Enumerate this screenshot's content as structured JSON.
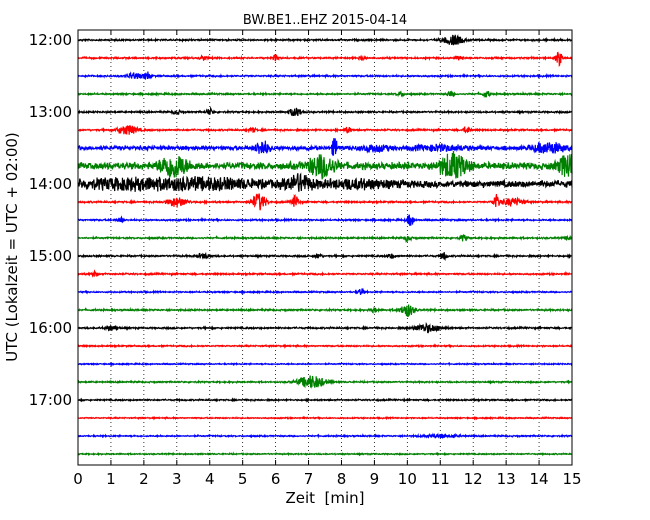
{
  "chart_data": {
    "type": "line",
    "title": "BW.BE1..EHZ 2015-04-14",
    "xlabel": "Zeit  [min]",
    "ylabel": "UTC (Lokalzeit = UTC + 02:00)",
    "xlim": [
      0,
      15
    ],
    "x_ticks": [
      0,
      1,
      2,
      3,
      4,
      5,
      6,
      7,
      8,
      9,
      10,
      11,
      12,
      13,
      14,
      15
    ],
    "y_tick_labels": [
      "12:00",
      "13:00",
      "14:00",
      "15:00",
      "16:00",
      "17:00"
    ],
    "grid": "vertical dotted",
    "series_colors": [
      "#000000",
      "#ff0000",
      "#0000ff",
      "#008000"
    ],
    "traces": [
      {
        "start": "12:00",
        "color": "#000000",
        "amplitude": 0.08,
        "events": [
          [
            11.4,
            0.6,
            0.3
          ]
        ]
      },
      {
        "start": "12:15",
        "color": "#ff0000",
        "amplitude": 0.08,
        "events": [
          [
            3.8,
            0.3,
            0.1
          ],
          [
            6.0,
            0.35,
            0.1
          ],
          [
            8.6,
            0.3,
            0.1
          ],
          [
            11.6,
            0.3,
            0.1
          ],
          [
            14.6,
            0.9,
            0.1
          ]
        ]
      },
      {
        "start": "12:30",
        "color": "#0000ff",
        "amplitude": 0.08,
        "events": [
          [
            1.7,
            0.4,
            0.2
          ],
          [
            2.1,
            0.5,
            0.1
          ]
        ]
      },
      {
        "start": "12:45",
        "color": "#008000",
        "amplitude": 0.08,
        "events": [
          [
            9.8,
            0.3,
            0.1
          ],
          [
            11.3,
            0.3,
            0.1
          ],
          [
            12.4,
            0.4,
            0.1
          ]
        ]
      },
      {
        "start": "13:00",
        "color": "#000000",
        "amplitude": 0.08,
        "events": [
          [
            3.0,
            0.3,
            0.1
          ],
          [
            4.0,
            0.4,
            0.1
          ],
          [
            6.6,
            0.5,
            0.2
          ]
        ]
      },
      {
        "start": "13:15",
        "color": "#ff0000",
        "amplitude": 0.08,
        "events": [
          [
            1.5,
            0.6,
            0.3
          ],
          [
            5.3,
            0.3,
            0.1
          ],
          [
            8.2,
            0.4,
            0.1
          ],
          [
            11.8,
            0.4,
            0.1
          ]
        ]
      },
      {
        "start": "13:30",
        "color": "#0000ff",
        "amplitude": 0.2,
        "events": [
          [
            5.6,
            0.9,
            0.2
          ],
          [
            7.8,
            1.1,
            0.1
          ],
          [
            9.0,
            0.4,
            0.4
          ],
          [
            11.0,
            0.3,
            0.8
          ],
          [
            14.3,
            0.6,
            0.5
          ]
        ]
      },
      {
        "start": "13:45",
        "color": "#008000",
        "amplitude": 0.35,
        "events": [
          [
            2.9,
            1.4,
            0.4
          ],
          [
            7.4,
            1.3,
            0.4
          ],
          [
            11.4,
            1.5,
            0.4
          ],
          [
            14.9,
            1.4,
            0.3
          ]
        ]
      },
      {
        "start": "14:00",
        "color": "#000000",
        "amplitude": 0.35,
        "events": [
          [
            1.5,
            0.5,
            1.5
          ],
          [
            4.0,
            0.5,
            1.5
          ],
          [
            6.7,
            0.9,
            0.4
          ],
          [
            8.5,
            0.4,
            1.0
          ]
        ]
      },
      {
        "start": "14:15",
        "color": "#ff0000",
        "amplitude": 0.08,
        "events": [
          [
            3.0,
            0.6,
            0.3
          ],
          [
            5.5,
            1.1,
            0.2
          ],
          [
            6.6,
            0.8,
            0.1
          ],
          [
            12.7,
            0.9,
            0.1
          ],
          [
            13.2,
            0.5,
            0.3
          ]
        ]
      },
      {
        "start": "14:30",
        "color": "#0000ff",
        "amplitude": 0.08,
        "events": [
          [
            10.1,
            0.8,
            0.1
          ],
          [
            1.3,
            0.3,
            0.1
          ]
        ]
      },
      {
        "start": "14:45",
        "color": "#008000",
        "amplitude": 0.08,
        "events": [
          [
            10.0,
            0.4,
            0.1
          ],
          [
            11.7,
            0.4,
            0.1
          ],
          [
            14.9,
            0.3,
            0.1
          ]
        ]
      },
      {
        "start": "15:00",
        "color": "#000000",
        "amplitude": 0.08,
        "events": [
          [
            3.8,
            0.3,
            0.2
          ],
          [
            7.3,
            0.3,
            0.1
          ],
          [
            9.5,
            0.3,
            0.1
          ],
          [
            11.1,
            0.5,
            0.1
          ]
        ]
      },
      {
        "start": "15:15",
        "color": "#ff0000",
        "amplitude": 0.08,
        "events": [
          [
            0.5,
            0.3,
            0.1
          ]
        ]
      },
      {
        "start": "15:30",
        "color": "#0000ff",
        "amplitude": 0.07,
        "events": [
          [
            8.6,
            0.4,
            0.1
          ]
        ]
      },
      {
        "start": "15:45",
        "color": "#008000",
        "amplitude": 0.08,
        "events": [
          [
            9.0,
            0.3,
            0.1
          ],
          [
            10.0,
            0.8,
            0.2
          ]
        ]
      },
      {
        "start": "16:00",
        "color": "#000000",
        "amplitude": 0.08,
        "events": [
          [
            1.0,
            0.3,
            0.2
          ],
          [
            10.6,
            0.5,
            0.4
          ]
        ]
      },
      {
        "start": "16:15",
        "color": "#ff0000",
        "amplitude": 0.07,
        "events": []
      },
      {
        "start": "16:30",
        "color": "#0000ff",
        "amplitude": 0.06,
        "events": []
      },
      {
        "start": "16:45",
        "color": "#008000",
        "amplitude": 0.07,
        "events": [
          [
            7.1,
            0.8,
            0.4
          ]
        ]
      },
      {
        "start": "17:00",
        "color": "#000000",
        "amplitude": 0.07,
        "events": []
      },
      {
        "start": "17:15",
        "color": "#ff0000",
        "amplitude": 0.06,
        "events": []
      },
      {
        "start": "17:30",
        "color": "#0000ff",
        "amplitude": 0.07,
        "events": [
          [
            11.0,
            0.2,
            0.5
          ]
        ]
      },
      {
        "start": "17:45",
        "color": "#008000",
        "amplitude": 0.06,
        "events": []
      }
    ]
  }
}
